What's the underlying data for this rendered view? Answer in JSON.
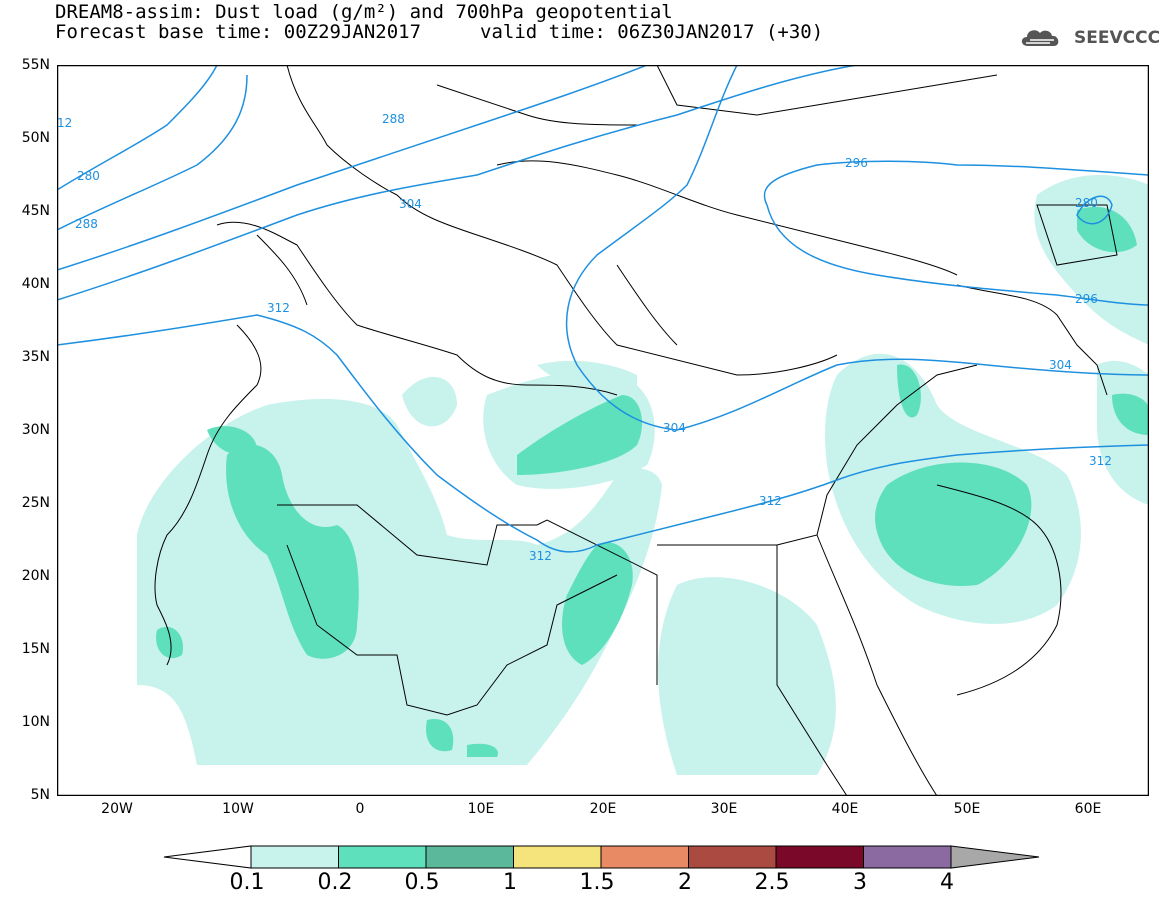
{
  "title": {
    "line1": "DREAM8-assim: Dust load (g/m²) and 700hPa geopotential",
    "line2_base": "Forecast base time: 00Z29JAN2017",
    "line2_valid": "valid time: 06Z30JAN2017 (+30)"
  },
  "logo": {
    "text": "SEEVCCC",
    "icon": "cloud-icon"
  },
  "map": {
    "region": "Sahara, Europe and Middle East",
    "lon_range": [
      -25,
      65
    ],
    "lat_range": [
      5,
      55
    ],
    "lat_ticks": [
      "55N",
      "50N",
      "45N",
      "40N",
      "35N",
      "30N",
      "25N",
      "20N",
      "15N",
      "10N",
      "5N"
    ],
    "lon_ticks": [
      "20W",
      "10W",
      "0",
      "10E",
      "20E",
      "30E",
      "40E",
      "50E",
      "60E"
    ],
    "contour_labels": [
      "12",
      "280",
      "288",
      "288",
      "304",
      "296",
      "312",
      "296",
      "304",
      "304",
      "312",
      "312",
      "312",
      "280"
    ],
    "colors": {
      "land_border": "#000000",
      "contour": "#1e90e0",
      "dust_low": "#c8f2ec",
      "dust_mid": "#5fe0bc"
    }
  },
  "colorbar": {
    "labels": [
      "0.1",
      "0.2",
      "0.5",
      "1",
      "1.5",
      "2",
      "2.5",
      "3",
      "4"
    ],
    "colors": [
      "#ffffff",
      "#c8f2ec",
      "#5fe0bc",
      "#5cb89a",
      "#f5e47c",
      "#e88a64",
      "#ab4a40",
      "#7a0828",
      "#8a6aa0",
      "#a8a8a8"
    ]
  }
}
